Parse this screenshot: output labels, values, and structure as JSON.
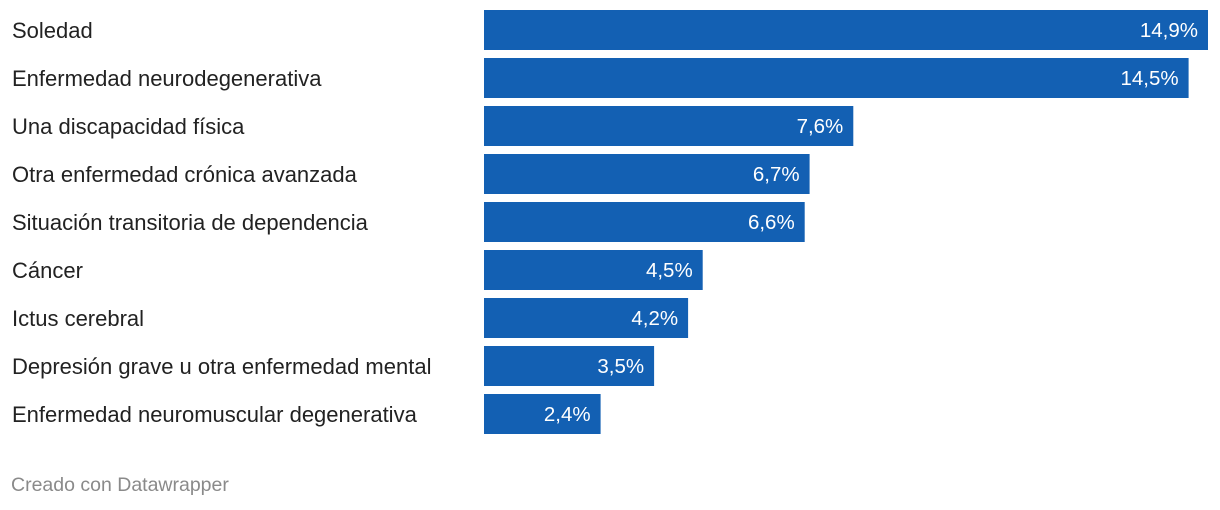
{
  "chart_data": {
    "type": "bar",
    "orientation": "horizontal",
    "categories": [
      "Soledad",
      "Enfermedad neurodegenerativa",
      "Una discapacidad física",
      "Otra enfermedad crónica avanzada",
      "Situación transitoria de dependencia",
      "Cáncer",
      "Ictus cerebral",
      "Depresión grave u otra enfermedad mental",
      "Enfermedad neuromuscular degenerativa"
    ],
    "values": [
      14.9,
      14.5,
      7.6,
      6.7,
      6.6,
      4.5,
      4.2,
      3.5,
      2.4
    ],
    "value_labels": [
      "14,9%",
      "14,5%",
      "7,6%",
      "6,7%",
      "6,6%",
      "4,5%",
      "4,2%",
      "3,5%",
      "2,4%"
    ],
    "xlim": [
      0,
      14.9
    ],
    "title": "",
    "xlabel": "",
    "ylabel": "",
    "grid": false,
    "legend": "none",
    "bar_color": "#1360b3",
    "value_label_color": "#ffffff"
  },
  "footer": {
    "credit": "Creado con Datawrapper"
  }
}
